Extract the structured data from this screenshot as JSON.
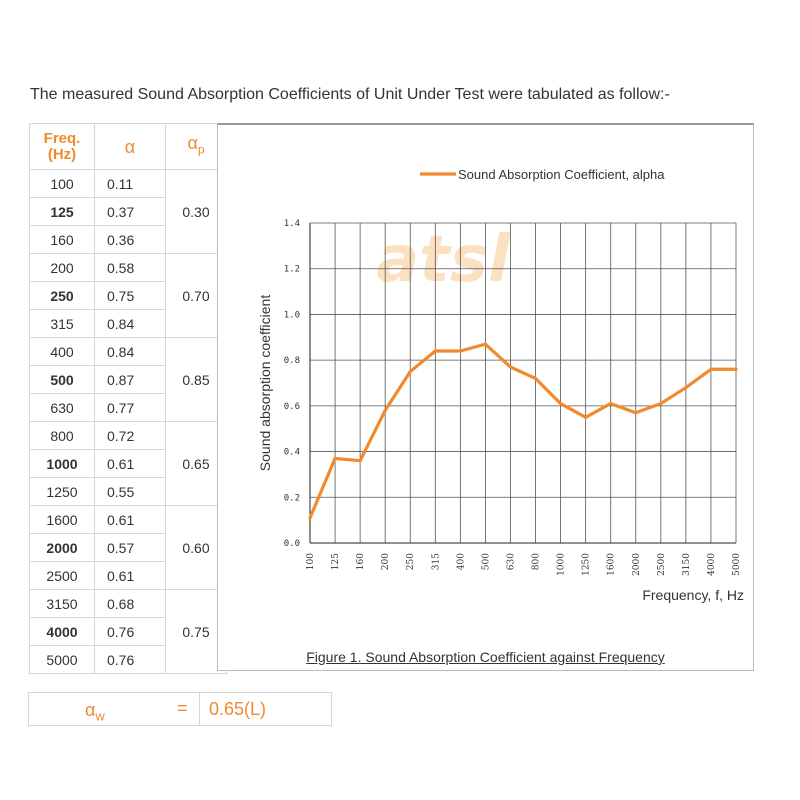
{
  "intro": "The measured Sound Absorption Coefficients of Unit Under Test were tabulated as follow:-",
  "table": {
    "headers": {
      "freq_line1": "Freq.",
      "freq_line2": "(Hz)",
      "alpha": "α",
      "alpha_p": "α",
      "alpha_p_sub": "p"
    },
    "rows": [
      {
        "freq": "100",
        "alpha": "0.11",
        "bold": false
      },
      {
        "freq": "125",
        "alpha": "0.37",
        "bold": true
      },
      {
        "freq": "160",
        "alpha": "0.36",
        "bold": false
      },
      {
        "freq": "200",
        "alpha": "0.58",
        "bold": false
      },
      {
        "freq": "250",
        "alpha": "0.75",
        "bold": true
      },
      {
        "freq": "315",
        "alpha": "0.84",
        "bold": false
      },
      {
        "freq": "400",
        "alpha": "0.84",
        "bold": false
      },
      {
        "freq": "500",
        "alpha": "0.87",
        "bold": true
      },
      {
        "freq": "630",
        "alpha": "0.77",
        "bold": false
      },
      {
        "freq": "800",
        "alpha": "0.72",
        "bold": false
      },
      {
        "freq": "1000",
        "alpha": "0.61",
        "bold": true
      },
      {
        "freq": "1250",
        "alpha": "0.55",
        "bold": false
      },
      {
        "freq": "1600",
        "alpha": "0.61",
        "bold": false
      },
      {
        "freq": "2000",
        "alpha": "0.57",
        "bold": true
      },
      {
        "freq": "2500",
        "alpha": "0.61",
        "bold": false
      },
      {
        "freq": "3150",
        "alpha": "0.68",
        "bold": false
      },
      {
        "freq": "4000",
        "alpha": "0.76",
        "bold": true
      },
      {
        "freq": "5000",
        "alpha": "0.76",
        "bold": false
      }
    ],
    "alpha_p_values": [
      "0.30",
      "0.70",
      "0.85",
      "0.65",
      "0.60",
      "0.75"
    ]
  },
  "weighted": {
    "symbol": "α",
    "symbol_sub": "w",
    "equals": "=",
    "value": "0.65(L)"
  },
  "chart_data": {
    "type": "line",
    "legend": "Sound Absorption Coefficient, alpha",
    "legend_position": "top-right",
    "xlabel": "Frequency, f, Hz",
    "ylabel": "Sound absorption coefficient",
    "caption": "Figure 1. Sound Absorption Coefficient against Frequency",
    "categories": [
      "100",
      "125",
      "160",
      "200",
      "250",
      "315",
      "400",
      "500",
      "630",
      "800",
      "1000",
      "1250",
      "1600",
      "2000",
      "2500",
      "3150",
      "4000",
      "5000"
    ],
    "values": [
      0.11,
      0.37,
      0.36,
      0.58,
      0.75,
      0.84,
      0.84,
      0.87,
      0.77,
      0.72,
      0.61,
      0.55,
      0.61,
      0.57,
      0.61,
      0.68,
      0.76,
      0.76
    ],
    "yticks": [
      "0.0",
      "0.2",
      "0.4",
      "0.6",
      "0.8",
      "1.0",
      "1.2",
      "1.4"
    ],
    "ylim": [
      0,
      1.4
    ],
    "grid": true,
    "line_color": "#f08a2c",
    "watermark": "atsl"
  },
  "colors": {
    "accent": "#f08a2c",
    "grid": "#555555"
  }
}
